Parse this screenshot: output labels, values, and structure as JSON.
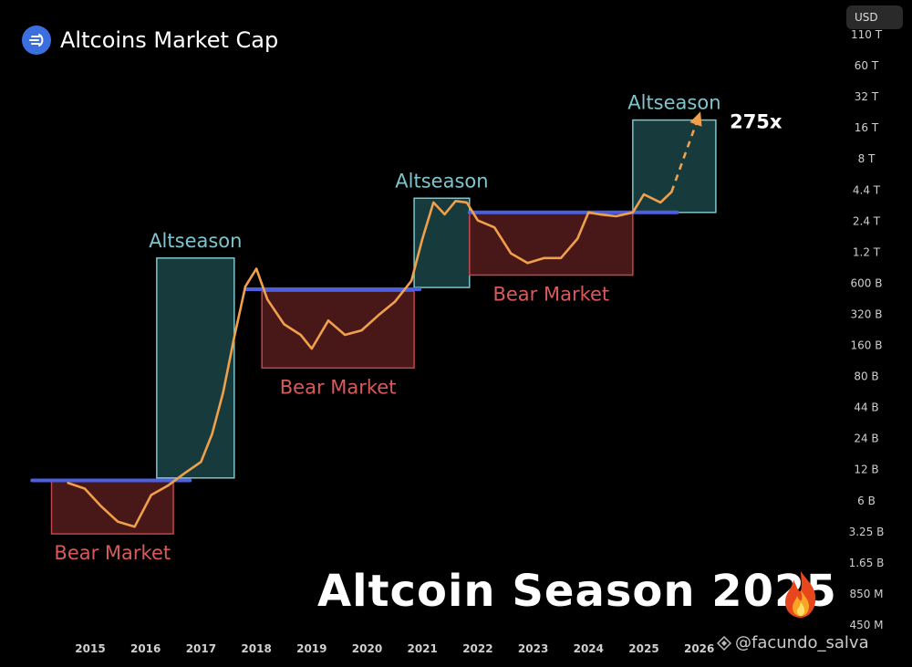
{
  "header": {
    "title": "Altcoins Market Cap",
    "currency_button": "USD"
  },
  "headline": "Altcoin Season 2025",
  "watermark": {
    "text": "@facundo_salva"
  },
  "colors": {
    "background": "#000000",
    "price_line": "#f0a04b",
    "altseason_box": "#1f4f52",
    "altseason_border": "#7fc4cc",
    "bear_box": "#5a1e1e",
    "bear_border": "#c0454c",
    "support_line": "#4b5fe0",
    "altseason_text": "#7fc4cc",
    "bear_text": "#d85a5a"
  },
  "chart_data": {
    "type": "line",
    "title": "Altcoins Market Cap",
    "log_scale": true,
    "x_ticks": [
      "2015",
      "2016",
      "2017",
      "2018",
      "2019",
      "2020",
      "2021",
      "2022",
      "2023",
      "2024",
      "2025",
      "2026"
    ],
    "y_ticks": [
      "110 T",
      "60 T",
      "32 T",
      "16 T",
      "8 T",
      "4.4 T",
      "2.4 T",
      "1.2 T",
      "600 B",
      "320 B",
      "160 B",
      "80 B",
      "44 B",
      "24 B",
      "12 B",
      "6 B",
      "3.25 B",
      "1.65 B",
      "850 M",
      "450 M"
    ],
    "series": [
      {
        "x": [
          2014.6,
          2014.9,
          2015.2,
          2015.5,
          2015.8,
          2016.1,
          2016.4,
          2016.7,
          2017.0,
          2017.2,
          2017.4,
          2017.6,
          2017.8,
          2018.0,
          2018.2,
          2018.5,
          2018.8,
          2019.0,
          2019.3,
          2019.6,
          2019.9,
          2020.2,
          2020.5,
          2020.8,
          2021.0,
          2021.2,
          2021.4,
          2021.6,
          2021.8,
          2022.0,
          2022.3,
          2022.6,
          2022.9,
          2023.2,
          2023.5,
          2023.8,
          2024.0,
          2024.2,
          2024.5,
          2024.8,
          2025.0,
          2025.3,
          2025.5
        ],
        "y": [
          9,
          8,
          5.5,
          4,
          3.6,
          7,
          8.5,
          11,
          14,
          25,
          60,
          190,
          550,
          800,
          420,
          250,
          200,
          150,
          270,
          200,
          220,
          300,
          400,
          620,
          1500,
          3200,
          2500,
          3300,
          3200,
          2200,
          1900,
          1100,
          900,
          1000,
          1000,
          1500,
          2600,
          2500,
          2400,
          2600,
          3800,
          3200,
          4000
        ]
      }
    ],
    "projection": {
      "x": [
        2025.5,
        2026.0
      ],
      "y": [
        4000,
        20000
      ]
    },
    "annotations": [
      {
        "kind": "altseason",
        "label": "Altseason",
        "x": [
          2016.2,
          2017.6
        ],
        "y": [
          10,
          1000
        ]
      },
      {
        "kind": "altseason",
        "label": "Altseason",
        "x": [
          2020.85,
          2021.85
        ],
        "y": [
          540,
          3500
        ]
      },
      {
        "kind": "altseason",
        "label": "Altseason",
        "x": [
          2024.8,
          2026.3
        ],
        "y": [
          2600,
          18000
        ]
      },
      {
        "kind": "bear",
        "label": "Bear Market",
        "x": [
          2014.3,
          2016.5
        ],
        "y": [
          3.1,
          9.5
        ]
      },
      {
        "kind": "bear",
        "label": "Bear Market",
        "x": [
          2018.1,
          2020.85
        ],
        "y": [
          100,
          500
        ]
      },
      {
        "kind": "bear",
        "label": "Bear Market",
        "x": [
          2021.85,
          2024.8
        ],
        "y": [
          700,
          2600
        ]
      },
      {
        "kind": "note",
        "label": "275x",
        "x": 2026.55,
        "y": 17000
      }
    ],
    "support_lines": [
      {
        "x": [
          2013.95,
          2016.8
        ],
        "y": 9.5
      },
      {
        "x": [
          2017.8,
          2020.95
        ],
        "y": 520
      },
      {
        "x": [
          2021.85,
          2025.6
        ],
        "y": 2600
      }
    ]
  }
}
